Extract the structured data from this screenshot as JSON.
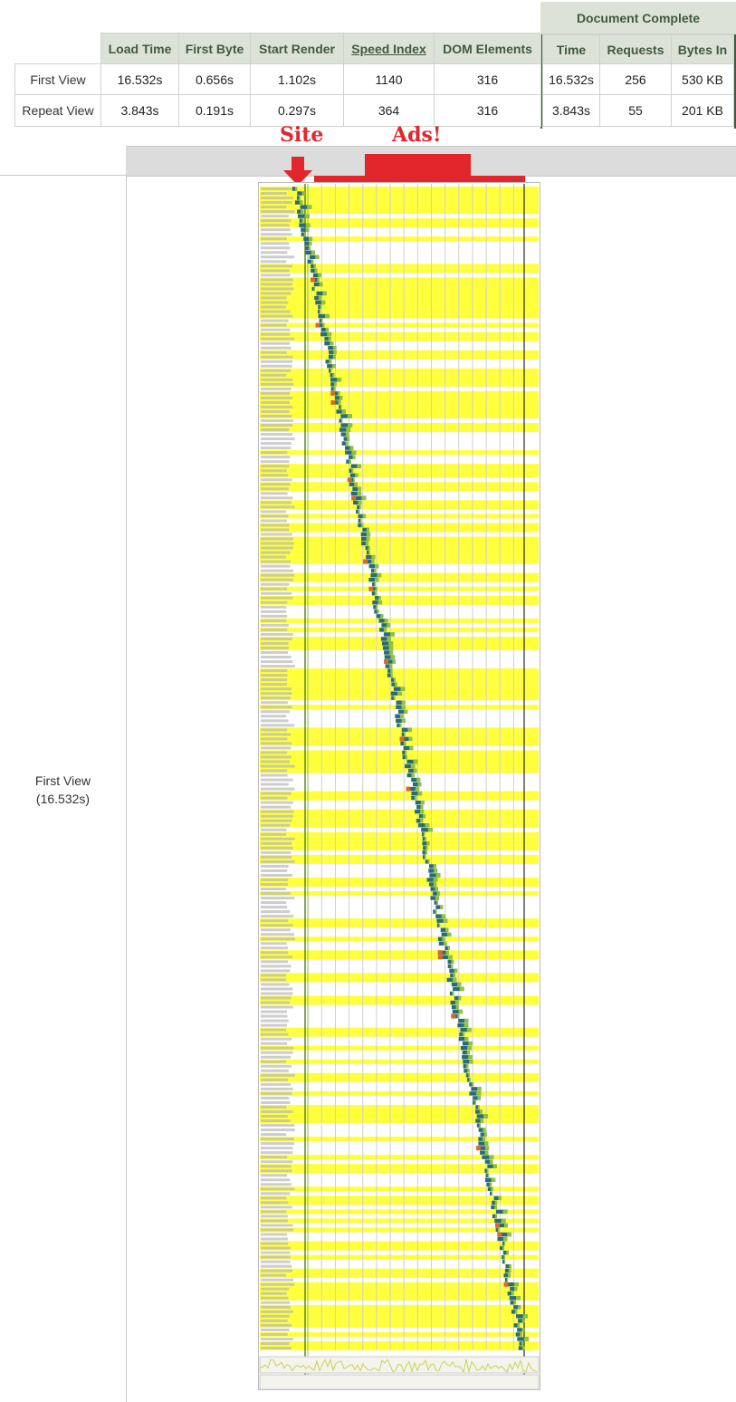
{
  "summary": {
    "group_header": "Document Complete",
    "columns": [
      "Load Time",
      "First Byte",
      "Start Render",
      "Speed Index",
      "DOM Elements",
      "Time",
      "Requests",
      "Bytes In"
    ],
    "rows": [
      {
        "label": "First View",
        "values": [
          "16.532s",
          "0.656s",
          "1.102s",
          "1140",
          "316",
          "16.532s",
          "256",
          "530 KB"
        ]
      },
      {
        "label": "Repeat View",
        "values": [
          "3.843s",
          "0.191s",
          "0.297s",
          "364",
          "316",
          "3.843s",
          "55",
          "201 KB"
        ]
      }
    ]
  },
  "annotations": {
    "site": "Site",
    "ads": "Ads!"
  },
  "waterfall": {
    "view_label": "First View",
    "view_time": "(16.532s)",
    "request_count": 256,
    "colors": {
      "highlight": "#ffff3a",
      "bar": "#2a6b7a",
      "bar_accent": "#8fc23f",
      "render_line": "#5a8a2a",
      "arrow": "#e3262b"
    }
  }
}
